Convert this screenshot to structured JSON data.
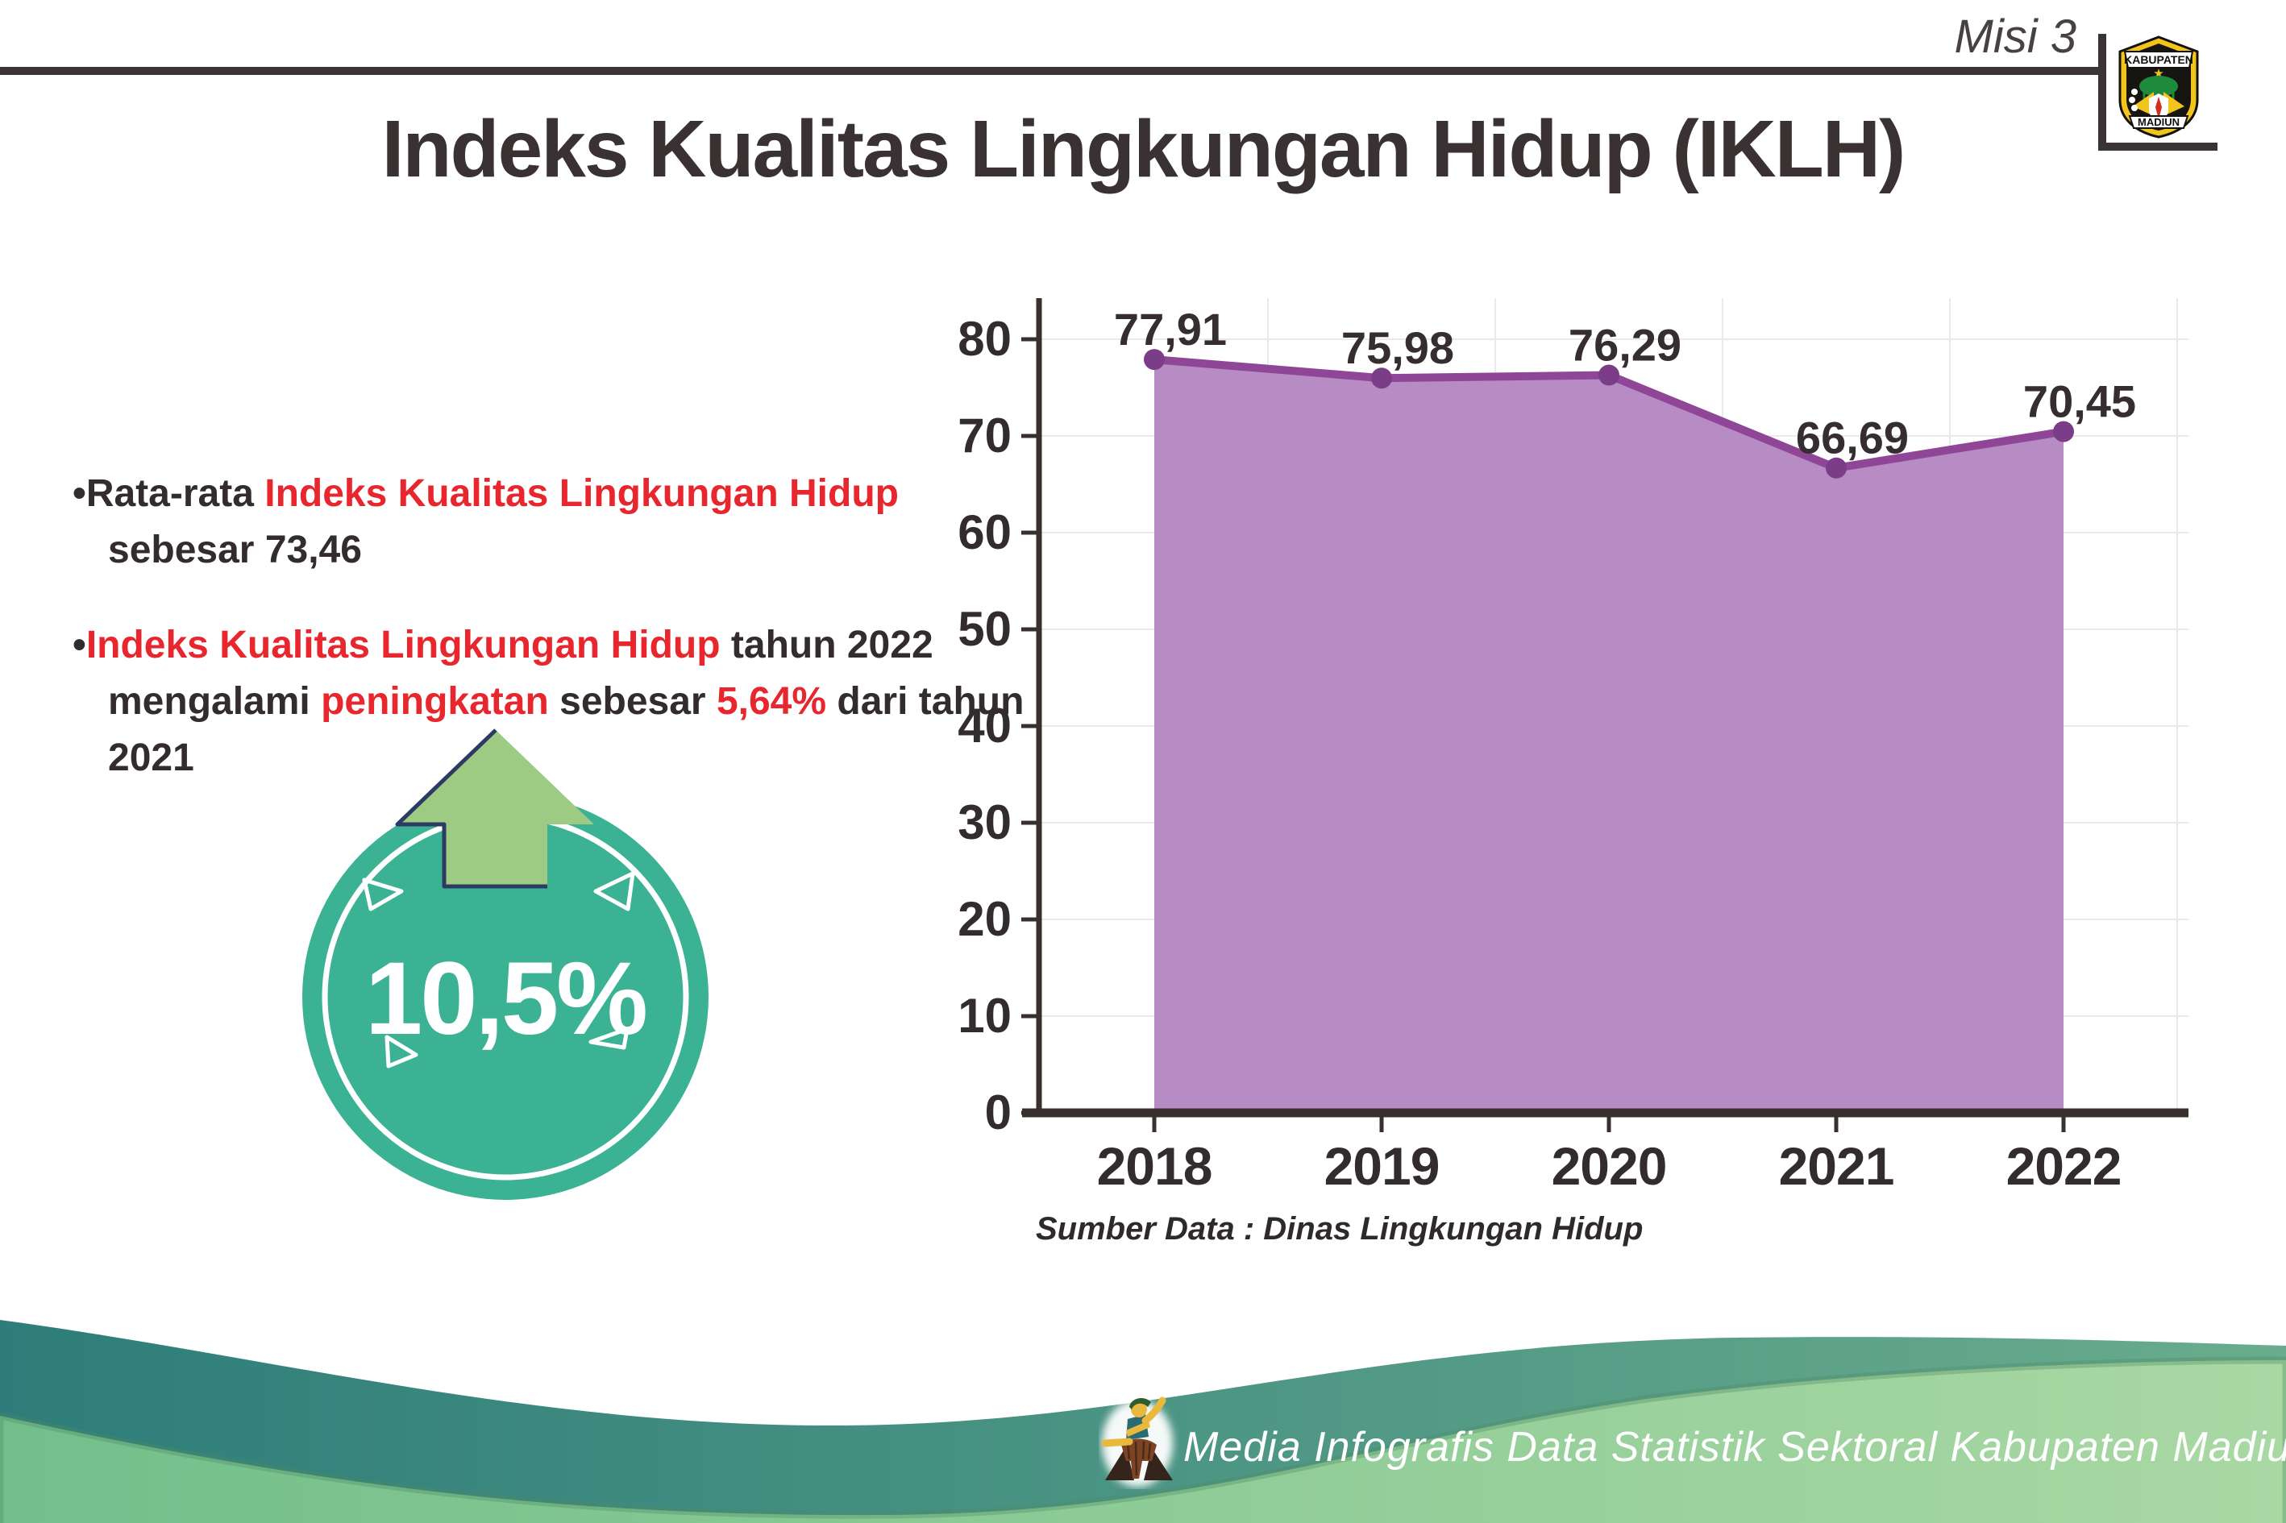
{
  "header": {
    "mission_label": "Misi 3",
    "logo": {
      "top_text": "KABUPATEN",
      "bottom_text": "MADIUN"
    }
  },
  "title": "Indeks Kualitas Lingkungan Hidup (IKLH)",
  "bullets": {
    "marker": "•",
    "b1": {
      "s1": "Rata-rata ",
      "s2": "Indeks Kualitas Lingkungan Hidup",
      "s3": " sebesar 73,46"
    },
    "b2": {
      "s1": "Indeks Kualitas Lingkungan Hidup",
      "s2": " tahun 2022 mengalami ",
      "s3": "peningkatan",
      "s4": " sebesar ",
      "s5": "5,64%",
      "s6": " dari tahun 2021"
    }
  },
  "badge": {
    "value": "10,5%"
  },
  "chart_data": {
    "type": "area",
    "title": "",
    "categories": [
      "2018",
      "2019",
      "2020",
      "2021",
      "2022"
    ],
    "series": [
      {
        "name": "IKLH",
        "values": [
          77.91,
          75.98,
          76.29,
          66.69,
          70.45
        ]
      }
    ],
    "value_labels": [
      "77,91",
      "75,98",
      "76,29",
      "66,69",
      "70,45"
    ],
    "xlabel": "",
    "ylabel": "",
    "ylim": [
      0,
      80
    ],
    "ytick_step": 10,
    "grid": true,
    "legend": "none",
    "line_color": "#8f4697",
    "fill_color": "#b78bc3",
    "marker_color": "#7b3d88",
    "source": "Sumber Data : Dinas Lingkungan Hidup"
  },
  "footer": {
    "caption": "Media Infografis Data Statistik Sektoral Kabupaten Madiun |"
  },
  "colors": {
    "accent_red": "#e8262d",
    "dark_text": "#332c2e",
    "badge_teal": "#3cb295",
    "arrow_green": "#9ecb83",
    "arrow_outline_navy": "#2c3a64",
    "wave_teal_start": "#2e7d7a",
    "wave_teal_end": "#69ac8d",
    "wave_green_start": "#72bf8b",
    "wave_green_end": "#a9d8a3"
  }
}
